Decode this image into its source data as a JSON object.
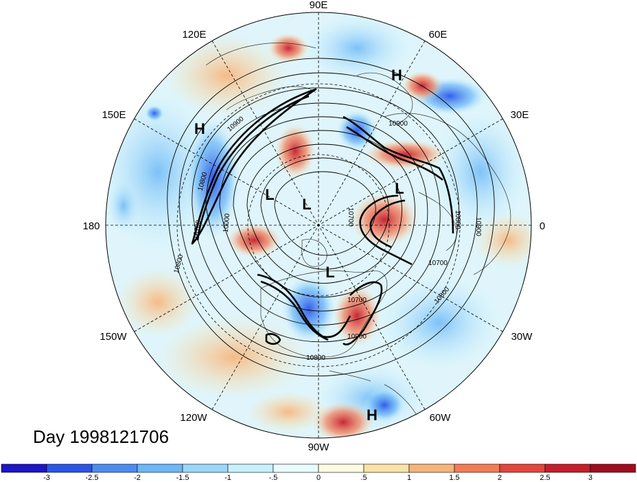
{
  "title": "Day 1998121706",
  "longitude_labels": [
    "90E",
    "60E",
    "30E",
    "0",
    "30W",
    "60W",
    "90W",
    "120W",
    "150W",
    "180",
    "150E",
    "120E"
  ],
  "pressure_centers": [
    {
      "label": "H",
      "lon": "near 60E"
    },
    {
      "label": "H",
      "lon": "near 150E"
    },
    {
      "label": "H",
      "lon": "near 60W"
    },
    {
      "label": "L"
    },
    {
      "label": "L"
    },
    {
      "label": "L"
    },
    {
      "label": "L"
    }
  ],
  "contour_labels": [
    "10900",
    "10800",
    "10700",
    "10900",
    "10800",
    "10700",
    "10800",
    "10900",
    "10800",
    "10700",
    "10000",
    "10800",
    "10900",
    "10700"
  ],
  "colorbar": {
    "tick_labels": [
      "-3",
      "-2.5",
      "-2",
      "-1.5",
      "-1",
      "-.5",
      "0",
      ".5",
      "1",
      "1.5",
      "2",
      "2.5",
      "3"
    ],
    "colors": [
      "#1f14c7",
      "#2b55e8",
      "#4a8df2",
      "#6bb8f7",
      "#9ad8fb",
      "#c7f0fe",
      "#e8fbff",
      "#fffbe0",
      "#fbe2a6",
      "#f8b37a",
      "#f47c55",
      "#e5453a",
      "#c61d2a",
      "#a10c1e"
    ]
  }
}
